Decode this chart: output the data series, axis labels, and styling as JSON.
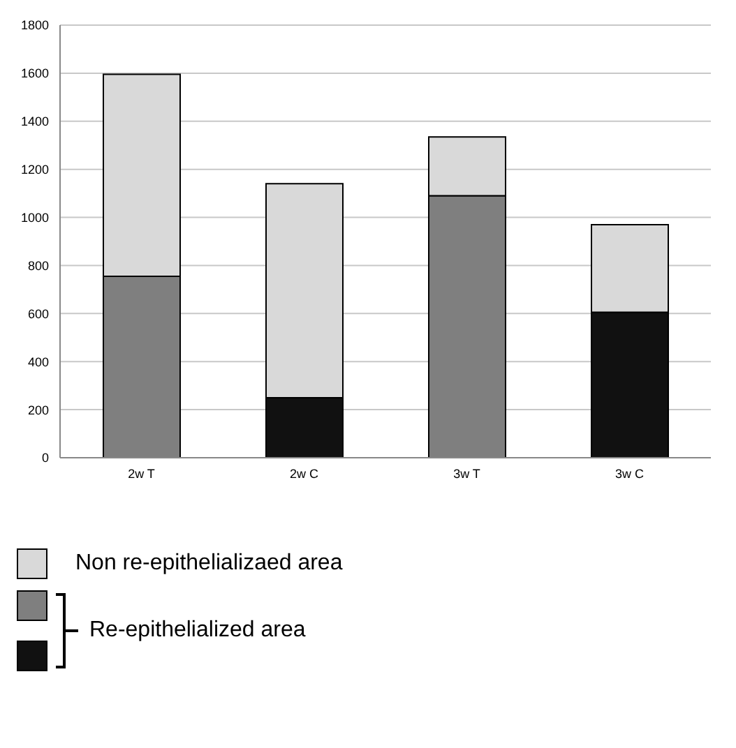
{
  "chart_data": {
    "type": "bar",
    "categories": [
      "2w T",
      "2w C",
      "3w T",
      "3w C"
    ],
    "stacked": true,
    "ylim": [
      0,
      1800
    ],
    "yticks": [
      0,
      200,
      400,
      600,
      800,
      1000,
      1200,
      1400,
      1600,
      1800
    ],
    "grid": "y",
    "legend": "bottom",
    "series": [
      {
        "name": "Re-epithelialized area",
        "colors": [
          "#7f7f7f",
          "#111111",
          "#7f7f7f",
          "#111111"
        ],
        "values": [
          755,
          250,
          1090,
          605
        ]
      },
      {
        "name": "Non re-epithelializaed area",
        "color": "#d9d9d9",
        "values": [
          840,
          890,
          245,
          365
        ]
      }
    ]
  }
}
